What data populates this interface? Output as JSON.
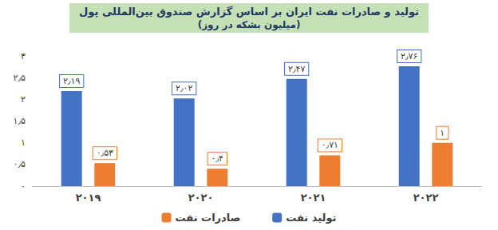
{
  "chart_data": {
    "type": "bar",
    "title": "تولید و صادرات نفت ایران بر اساس گزارش صندوق بین‌المللی پول",
    "subtitle": "(میلیون بشکه در روز)",
    "categories": [
      "۲۰۱۹",
      "۲۰۲۰",
      "۲۰۲۱",
      "۲۰۲۲"
    ],
    "series": [
      {
        "name": "تولید نفت",
        "color": "#4472c4",
        "values": [
          2.19,
          2.02,
          2.47,
          2.76
        ],
        "value_labels": [
          "۲٫۱۹",
          "۲٫۰۲",
          "۲٫۴۷",
          "۲٫۷۶"
        ]
      },
      {
        "name": "صادرات نفت",
        "color": "#ed7d31",
        "values": [
          0.53,
          0.4,
          0.71,
          1
        ],
        "value_labels": [
          "۰٫۵۳",
          "۰٫۴",
          "۰٫۷۱",
          "۱"
        ]
      }
    ],
    "ylim": [
      0,
      3
    ],
    "yticks": [
      {
        "value": 0,
        "label": "۰"
      },
      {
        "value": 0.5,
        "label": "۰٫۵"
      },
      {
        "value": 1,
        "label": "۱"
      },
      {
        "value": 1.5,
        "label": "۱٫۵"
      },
      {
        "value": 2,
        "label": "۲"
      },
      {
        "value": 2.5,
        "label": "۲٫۵"
      },
      {
        "value": 3,
        "label": "۳"
      }
    ],
    "grid": false,
    "legend": "bottom",
    "data_labels": true
  }
}
